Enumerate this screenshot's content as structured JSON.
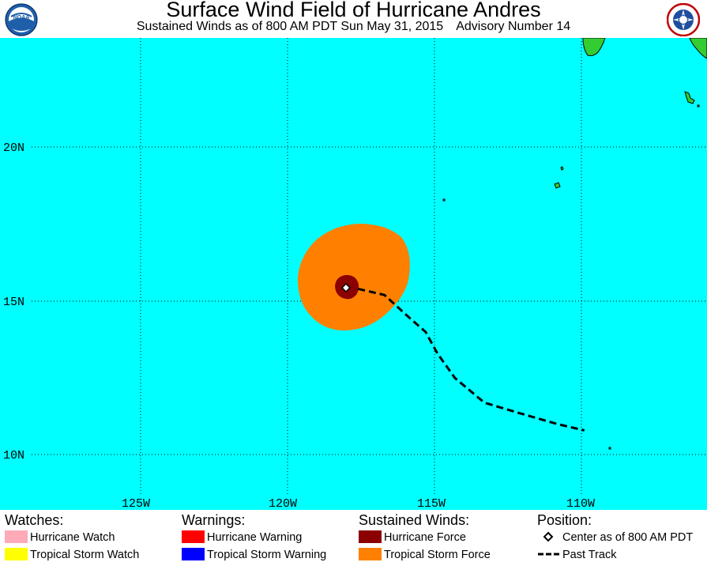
{
  "header": {
    "title": "Surface Wind Field of Hurricane Andres",
    "subtitle_part1": "Sustained Winds as of 800 AM PDT Sun May 31, 2015",
    "subtitle_part2": "Advisory Number 14",
    "left_logo": "noaa-logo",
    "right_logo": "national-weather-service-logo"
  },
  "map": {
    "ocean_color": "#00FFFF",
    "land_color": "#33CC33",
    "lat_labels": [
      "20N",
      "15N",
      "10N"
    ],
    "lon_labels": [
      "125W",
      "120W",
      "115W",
      "110W"
    ],
    "track_points_lonlat": [
      [
        -117.6,
        15.4
      ],
      [
        -116.7,
        15.2
      ],
      [
        -115.9,
        14.5
      ],
      [
        -115.3,
        14.0
      ],
      [
        -114.9,
        13.3
      ],
      [
        -114.3,
        12.5
      ],
      [
        -113.3,
        11.7
      ],
      [
        -111.9,
        11.3
      ],
      [
        -110.8,
        11.0
      ],
      [
        -109.9,
        10.8
      ]
    ],
    "center_lonlat": [
      -117.8,
      15.5
    ]
  },
  "legend": {
    "watches": {
      "heading": "Watches:",
      "items": [
        {
          "label": "Hurricane Watch",
          "color": "#FFAAB9"
        },
        {
          "label": "Tropical Storm Watch",
          "color": "#FFFF00"
        }
      ]
    },
    "warnings": {
      "heading": "Warnings:",
      "items": [
        {
          "label": "Hurricane Warning",
          "color": "#FF0000"
        },
        {
          "label": "Tropical Storm Warning",
          "color": "#0000FF"
        }
      ]
    },
    "winds": {
      "heading": "Sustained Winds:",
      "items": [
        {
          "label": "Hurricane Force",
          "color": "#8B0000"
        },
        {
          "label": "Tropical Storm Force",
          "color": "#FF8000"
        }
      ]
    },
    "position": {
      "heading": "Position:",
      "center_label": "Center as of 800 AM PDT",
      "track_label": "Past Track"
    }
  }
}
